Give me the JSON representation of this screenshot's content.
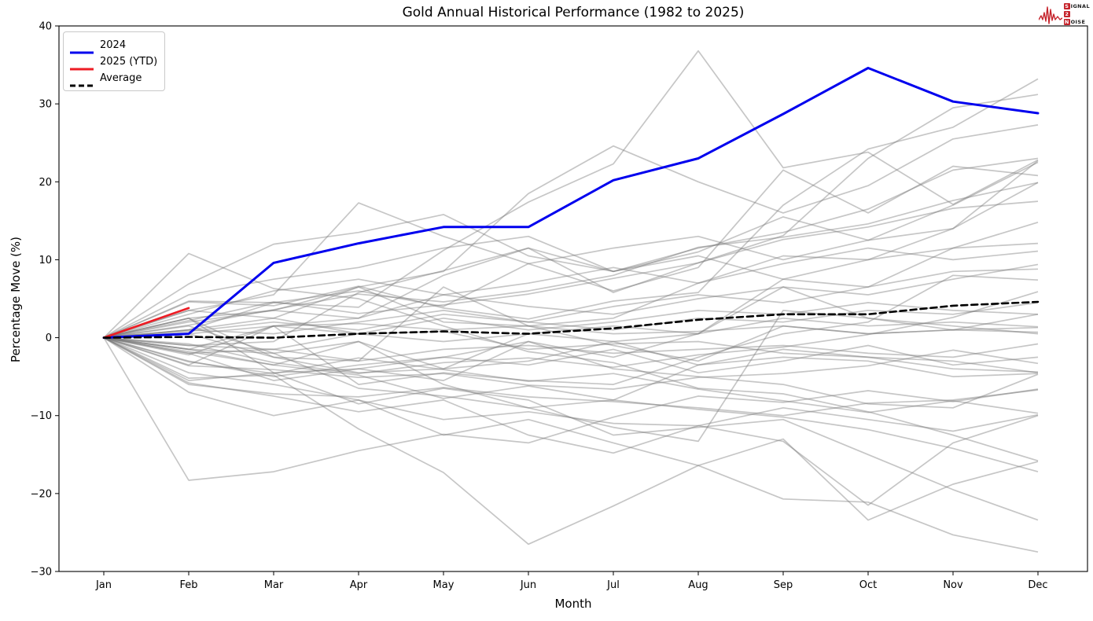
{
  "title": "Gold Annual Historical Performance (1982 to 2025)",
  "logo": {
    "color": "#c5232b",
    "rows": [
      {
        "boxed": "S",
        "rest": "IGNAL"
      },
      {
        "boxed": "2",
        "rest": ""
      },
      {
        "boxed": "N",
        "rest": "OISE"
      }
    ]
  },
  "chart_data": {
    "type": "line",
    "title": "Gold Annual Historical Performance (1982 to 2025)",
    "xlabel": "Month",
    "ylabel": "Percentage Move (%)",
    "x_ticks": [
      "Jan",
      "Feb",
      "Mar",
      "Apr",
      "May",
      "Jun",
      "Jul",
      "Aug",
      "Sep",
      "Oct",
      "Nov",
      "Dec"
    ],
    "y_ticks": [
      {
        "label": "−30",
        "value": -30
      },
      {
        "label": "−20",
        "value": -20
      },
      {
        "label": "−10",
        "value": -10
      },
      {
        "label": "0",
        "value": 0
      },
      {
        "label": "10",
        "value": 10
      },
      {
        "label": "20",
        "value": 20
      },
      {
        "label": "30",
        "value": 30
      },
      {
        "label": "40",
        "value": 40
      }
    ],
    "ylim": [
      -30,
      40
    ],
    "grid": false,
    "legend_position": "upper-left",
    "legend": [
      {
        "label": "2024",
        "color": "#0000ee",
        "dash": false
      },
      {
        "label": "2025 (YTD)",
        "color": "#ed1c24",
        "dash": false
      },
      {
        "label": "Average",
        "color": "#000000",
        "dash": true
      }
    ],
    "series": [
      {
        "name": "2024",
        "color": "#0000ee",
        "width": 3,
        "dash": false,
        "values": [
          0,
          0.5,
          9.6,
          12.1,
          14.2,
          14.2,
          20.2,
          23.0,
          28.7,
          34.6,
          30.3,
          28.8
        ]
      },
      {
        "name": "2025 (YTD)",
        "color": "#ed1c24",
        "width": 2.6,
        "dash": false,
        "values": [
          0,
          3.8
        ]
      },
      {
        "name": "Average",
        "color": "#000000",
        "width": 2.6,
        "dash": true,
        "values": [
          0,
          0.1,
          0.0,
          0.5,
          0.8,
          0.5,
          1.2,
          2.3,
          3.0,
          3.0,
          4.1,
          4.6
        ]
      }
    ],
    "background_series": {
      "note": "historical years 1982-2023, percentage move by month",
      "color": "#787878",
      "opacity": 0.42,
      "width": 1.7,
      "values": [
        [
          0,
          10.8,
          6.3,
          5.0,
          1.5,
          -1.8,
          -3.2,
          -6.5,
          -7.2,
          -9.5,
          -12.5,
          -15.8
        ],
        [
          0,
          6.9,
          12.0,
          13.5,
          15.8,
          10.5,
          8.5,
          11.5,
          13.5,
          16.5,
          21.5,
          23.0
        ],
        [
          0,
          3.5,
          5.5,
          17.3,
          13.0,
          9.5,
          11.5,
          13.0,
          10.0,
          12.5,
          17.0,
          22.5
        ],
        [
          0,
          1.0,
          2.5,
          6.5,
          8.5,
          18.5,
          24.6,
          20.0,
          16.0,
          19.5,
          25.5,
          27.3
        ],
        [
          0,
          4.7,
          4.5,
          3.9,
          11.2,
          17.4,
          22.3,
          36.8,
          21.8,
          23.8,
          17.1,
          22.8
        ],
        [
          0,
          -5.2,
          -4.8,
          -11.7,
          -17.3,
          -26.5,
          -21.6,
          -16.4,
          -20.7,
          -21.1,
          -25.3,
          -27.5
        ],
        [
          0,
          -18.3,
          -17.2,
          -14.5,
          -12.4,
          -13.5,
          -10.2,
          -7.5,
          -8.3,
          -6.8,
          -8.2,
          -6.6
        ],
        [
          0,
          4.6,
          4.1,
          6.6,
          3.8,
          2.4,
          4.7,
          5.8,
          17.0,
          24.2,
          27.0,
          33.2
        ],
        [
          0,
          -1.0,
          -0.5,
          5.8,
          8.6,
          11.5,
          5.8,
          9.6,
          13.1,
          23.0,
          29.5,
          31.2
        ],
        [
          0,
          -5.5,
          -4.5,
          -8.5,
          -6.5,
          -8.0,
          -12.5,
          -11.5,
          -10.5,
          -15.0,
          -19.5,
          -23.4
        ],
        [
          0,
          -1.8,
          -3.5,
          -4.8,
          -7.8,
          -6.2,
          -8.0,
          -9.2,
          -10.2,
          -11.8,
          -14.2,
          -17.2
        ],
        [
          0,
          2.2,
          4.6,
          3.1,
          4.2,
          5.6,
          7.6,
          9.6,
          12.6,
          14.2,
          16.6,
          17.5
        ],
        [
          0,
          1.6,
          3.6,
          5.6,
          4.6,
          6.0,
          8.0,
          11.6,
          12.9,
          14.6,
          17.6,
          19.9
        ],
        [
          0,
          -3.1,
          -4.6,
          -2.6,
          -4.1,
          -5.6,
          -4.6,
          -6.6,
          -8.1,
          -9.6,
          -8.1,
          -9.7
        ],
        [
          0,
          -3.6,
          -4.1,
          -5.1,
          -4.6,
          -6.1,
          -6.6,
          -5.1,
          -4.6,
          -3.6,
          -1.6,
          -3.3
        ],
        [
          0,
          1.5,
          -2.0,
          -6.5,
          -7.5,
          -9.0,
          -8.0,
          -3.5,
          -1.5,
          -2.5,
          -4.0,
          -4.4
        ],
        [
          0,
          -6.0,
          -7.2,
          -7.6,
          -6.4,
          -7.6,
          -8.2,
          -9.0,
          -10.0,
          -8.4,
          -8.0,
          -6.7
        ],
        [
          0,
          0.5,
          -2.5,
          -4.5,
          -4.0,
          -3.0,
          -0.5,
          -3.5,
          -2.5,
          -3.0,
          -5.0,
          -4.6
        ],
        [
          0,
          -1.5,
          1.5,
          2.5,
          8.0,
          11.5,
          8.5,
          10.5,
          7.5,
          10.0,
          11.5,
          12.1
        ],
        [
          0,
          -2.0,
          -1.5,
          -3.0,
          -1.5,
          -1.0,
          -2.0,
          -1.5,
          -1.0,
          -2.0,
          -2.5,
          -0.8
        ],
        [
          0,
          -2.2,
          1.5,
          1.8,
          1.0,
          1.5,
          0.5,
          0.8,
          1.5,
          0.5,
          1.0,
          1.3
        ],
        [
          0,
          3.5,
          2.5,
          0.5,
          0.8,
          -1.5,
          -0.8,
          -0.5,
          -2.0,
          -2.5,
          -3.0,
          -4.5
        ],
        [
          0,
          2.5,
          3.5,
          6.5,
          2.0,
          1.5,
          -1.0,
          -3.0,
          1.5,
          0.5,
          1.0,
          0.7
        ],
        [
          0,
          -1.5,
          -3.5,
          -0.5,
          -6.0,
          -9.0,
          -11.5,
          -13.3,
          3.5,
          2.5,
          1.5,
          0.5
        ],
        [
          0,
          2.5,
          -4.5,
          -4.0,
          -5.5,
          -0.5,
          -4.0,
          -5.0,
          -6.0,
          -8.5,
          -9.0,
          -4.7
        ],
        [
          0,
          -3.0,
          -5.0,
          -3.5,
          -2.5,
          -0.5,
          -2.5,
          0.5,
          6.5,
          2.5,
          1.0,
          3.0
        ],
        [
          0,
          5.5,
          7.5,
          9.0,
          11.5,
          13.0,
          8.5,
          11.0,
          15.5,
          12.5,
          14.0,
          22.7
        ],
        [
          0,
          2.5,
          -2.5,
          -3.0,
          6.5,
          1.5,
          2.5,
          7.0,
          10.5,
          10.0,
          14.0,
          19.9
        ],
        [
          0,
          -3.5,
          1.5,
          -6.0,
          -4.5,
          -5.5,
          -6.0,
          -2.5,
          0.5,
          2.0,
          8.0,
          7.4
        ],
        [
          0,
          -1.5,
          -2.0,
          -0.5,
          -4.0,
          0.5,
          -0.5,
          0.5,
          7.5,
          6.5,
          11.5,
          14.8
        ],
        [
          0,
          3.0,
          6.0,
          7.5,
          5.5,
          7.0,
          9.0,
          7.0,
          9.5,
          11.5,
          10.0,
          11.1
        ],
        [
          0,
          -2.0,
          -5.5,
          -4.0,
          -2.5,
          -3.5,
          -1.5,
          -4.5,
          -3.0,
          -1.0,
          -3.5,
          -2.5
        ],
        [
          0,
          1.0,
          0.5,
          2.0,
          3.5,
          2.0,
          4.0,
          5.5,
          4.5,
          6.5,
          8.5,
          8.8
        ],
        [
          0,
          -0.8,
          -3.2,
          -4.6,
          -3.2,
          -2.6,
          -3.8,
          -2.2,
          -1.2,
          0.4,
          2.6,
          5.9
        ],
        [
          0,
          0.5,
          1.5,
          0.5,
          2.5,
          1.0,
          2.0,
          3.5,
          3.0,
          4.5,
          3.5,
          3.0
        ],
        [
          0,
          -1.0,
          -1.5,
          0.5,
          -0.5,
          0.5,
          1.5,
          0.5,
          2.5,
          1.5,
          2.0,
          1.4
        ],
        [
          0,
          2.0,
          3.5,
          2.5,
          5.5,
          4.0,
          3.0,
          5.0,
          6.5,
          5.5,
          7.5,
          9.4
        ],
        [
          0,
          -4.5,
          -6.0,
          -8.0,
          -10.5,
          -9.5,
          -11.0,
          -11.3,
          -9.0,
          -10.5,
          -12.0,
          -9.9
        ],
        [
          0,
          -7.0,
          -10.0,
          -8.0,
          -12.5,
          -10.5,
          -13.5,
          -16.4,
          -13.0,
          -23.4,
          -18.8,
          -15.9
        ],
        [
          0,
          -5.8,
          -7.5,
          -9.5,
          -8.0,
          -12.5,
          -14.8,
          -11.3,
          -13.3,
          -21.5,
          -13.5,
          -10.0
        ],
        [
          0,
          1.0,
          4.5,
          6.0,
          4.0,
          9.5,
          6.0,
          9.0,
          21.5,
          16.0,
          22.0,
          20.8
        ],
        [
          0,
          0.8,
          2.0,
          1.0,
          3.0,
          2.0,
          1.0,
          2.5,
          2.0,
          3.5,
          3.0,
          4.5
        ]
      ]
    }
  }
}
